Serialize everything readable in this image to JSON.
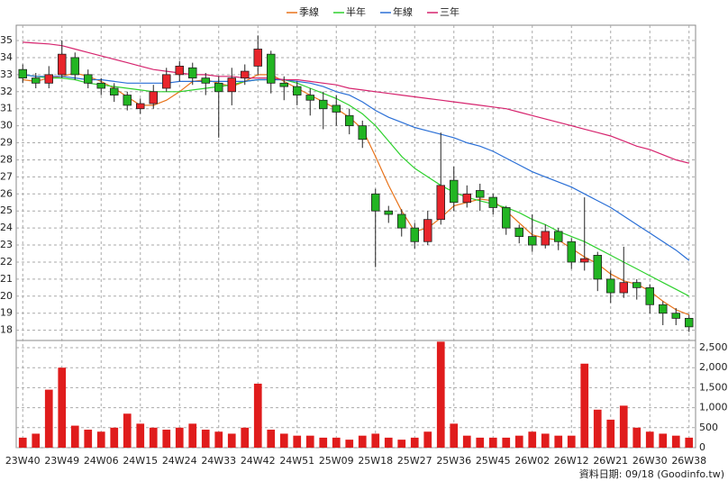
{
  "chart_data": {
    "type": "candlestick",
    "legend": "top",
    "grid": true,
    "categories": [
      "23W40",
      null,
      null,
      "23W49",
      null,
      null,
      "24W06",
      null,
      null,
      "24W15",
      null,
      null,
      "24W24",
      null,
      null,
      "24W33",
      null,
      null,
      "24W42",
      null,
      null,
      "24W51",
      null,
      null,
      "25W09",
      null,
      null,
      "25W18",
      null,
      null,
      "25W27",
      null,
      null,
      "25W36",
      null,
      null,
      "25W45",
      null,
      null,
      "26W02",
      null,
      null,
      "26W12",
      null,
      null,
      "26W21",
      null,
      null,
      "26W30",
      null,
      null,
      "26W38"
    ],
    "open": [
      33.3,
      32.8,
      32.5,
      33.0,
      34.0,
      33.0,
      32.5,
      32.2,
      31.8,
      31.0,
      31.3,
      32.2,
      33.0,
      33.4,
      32.8,
      32.5,
      32.0,
      32.8,
      33.5,
      34.2,
      32.5,
      32.3,
      31.8,
      31.5,
      31.2,
      30.6,
      30.0,
      26.0,
      25.0,
      24.8,
      24.0,
      23.2,
      24.5,
      26.8,
      25.5,
      26.2,
      25.8,
      25.2,
      24.0,
      23.5,
      23.0,
      23.8,
      23.2,
      22.0,
      22.4,
      21.0,
      20.2,
      20.8,
      20.5,
      19.5,
      19.0,
      18.7
    ],
    "high": [
      33.6,
      33.1,
      33.5,
      35.0,
      34.3,
      33.3,
      32.8,
      32.5,
      32.0,
      31.6,
      32.4,
      33.4,
      33.8,
      33.7,
      33.1,
      32.9,
      33.4,
      33.6,
      35.3,
      34.4,
      32.9,
      32.6,
      32.2,
      32.0,
      31.8,
      31.0,
      30.3,
      26.3,
      25.3,
      25.1,
      24.3,
      25.0,
      29.6,
      27.6,
      26.5,
      26.6,
      26.0,
      25.3,
      24.2,
      24.8,
      24.2,
      24.0,
      23.4,
      25.8,
      22.6,
      21.5,
      22.9,
      21.0,
      20.7,
      19.7,
      19.3,
      18.9
    ],
    "low": [
      32.5,
      32.2,
      32.2,
      32.8,
      32.7,
      32.2,
      31.8,
      31.4,
      30.9,
      30.7,
      31.0,
      32.0,
      32.6,
      32.4,
      31.8,
      29.3,
      31.2,
      32.4,
      33.0,
      31.9,
      31.5,
      31.2,
      30.6,
      29.8,
      30.0,
      29.5,
      28.7,
      21.7,
      24.3,
      23.5,
      22.8,
      23.0,
      24.2,
      25.0,
      25.2,
      25.0,
      24.8,
      23.6,
      23.1,
      22.6,
      22.8,
      22.7,
      21.6,
      21.5,
      20.3,
      19.6,
      19.9,
      19.8,
      19.0,
      18.3,
      18.3,
      17.9
    ],
    "close": [
      32.8,
      32.5,
      33.0,
      34.2,
      33.0,
      32.5,
      32.2,
      31.8,
      31.2,
      31.3,
      32.0,
      33.0,
      33.5,
      32.8,
      32.5,
      32.0,
      32.8,
      33.2,
      34.5,
      32.5,
      32.3,
      31.8,
      31.5,
      31.0,
      30.8,
      30.0,
      29.2,
      25.0,
      24.8,
      24.0,
      23.2,
      24.5,
      26.5,
      25.5,
      26.0,
      25.8,
      25.2,
      24.0,
      23.5,
      23.0,
      23.8,
      23.2,
      22.0,
      22.2,
      21.0,
      20.2,
      20.8,
      20.5,
      19.5,
      19.0,
      18.7,
      18.2
    ],
    "up_color": "#e8242b",
    "down_color": "#22b522",
    "series": [
      {
        "name": "季線",
        "color": "#e8731a",
        "values": [
          32.7,
          32.6,
          32.8,
          32.9,
          33.1,
          32.9,
          32.6,
          32.2,
          31.7,
          31.2,
          31.2,
          31.5,
          32.0,
          32.6,
          32.7,
          32.5,
          32.3,
          32.6,
          33.0,
          33.0,
          32.6,
          32.2,
          31.8,
          31.4,
          31.0,
          30.5,
          29.8,
          28.2,
          26.5,
          25.0,
          23.8,
          24.0,
          24.6,
          25.3,
          25.5,
          25.7,
          25.6,
          25.0,
          24.3,
          23.6,
          23.4,
          23.3,
          22.8,
          22.3,
          21.9,
          21.3,
          20.9,
          20.7,
          20.3,
          19.7,
          19.2,
          18.9
        ]
      },
      {
        "name": "半年",
        "color": "#2ed12e",
        "values": [
          33.0,
          32.9,
          32.8,
          32.8,
          32.7,
          32.5,
          32.4,
          32.3,
          32.2,
          32.1,
          32.0,
          32.0,
          32.0,
          32.1,
          32.2,
          32.3,
          32.4,
          32.6,
          32.7,
          32.7,
          32.7,
          32.5,
          32.2,
          31.9,
          31.6,
          31.2,
          30.7,
          30.0,
          29.1,
          28.2,
          27.5,
          27.0,
          26.5,
          26.1,
          25.8,
          25.6,
          25.4,
          25.2,
          24.9,
          24.5,
          24.2,
          23.8,
          23.5,
          23.2,
          22.8,
          22.4,
          22.0,
          21.6,
          21.2,
          20.8,
          20.4,
          20.0
        ]
      },
      {
        "name": "年線",
        "color": "#2a6fd6",
        "values": [
          33.0,
          32.9,
          32.9,
          32.9,
          32.8,
          32.7,
          32.7,
          32.6,
          32.5,
          32.5,
          32.5,
          32.5,
          32.6,
          32.6,
          32.6,
          32.6,
          32.6,
          32.6,
          32.7,
          32.7,
          32.7,
          32.6,
          32.5,
          32.3,
          32.0,
          31.8,
          31.4,
          30.9,
          30.5,
          30.2,
          29.9,
          29.7,
          29.5,
          29.3,
          29.0,
          28.8,
          28.5,
          28.1,
          27.7,
          27.3,
          27.0,
          26.7,
          26.4,
          26.0,
          25.6,
          25.2,
          24.7,
          24.2,
          23.7,
          23.2,
          22.7,
          22.1
        ]
      },
      {
        "name": "三年",
        "color": "#d6246e",
        "values": [
          34.9,
          34.85,
          34.8,
          34.7,
          34.5,
          34.3,
          34.1,
          33.9,
          33.7,
          33.5,
          33.3,
          33.2,
          33.1,
          33.0,
          33.0,
          32.9,
          32.9,
          32.8,
          32.8,
          32.8,
          32.7,
          32.7,
          32.6,
          32.5,
          32.4,
          32.2,
          32.1,
          32.0,
          31.9,
          31.8,
          31.7,
          31.6,
          31.5,
          31.4,
          31.3,
          31.2,
          31.1,
          31.0,
          30.8,
          30.6,
          30.4,
          30.2,
          30.0,
          29.8,
          29.6,
          29.4,
          29.1,
          28.8,
          28.6,
          28.3,
          28.0,
          27.8
        ]
      }
    ],
    "ylim": [
      17.4,
      35.9
    ],
    "yticks": [
      18,
      19,
      20,
      21,
      22,
      23,
      24,
      25,
      26,
      27,
      28,
      29,
      30,
      31,
      32,
      33,
      34,
      35
    ],
    "volume": {
      "color": "#e01c1c",
      "axis": "y2",
      "values": [
        250,
        350,
        1450,
        2000,
        550,
        450,
        400,
        500,
        850,
        600,
        500,
        450,
        500,
        600,
        450,
        400,
        350,
        500,
        1600,
        450,
        350,
        300,
        300,
        250,
        250,
        200,
        300,
        350,
        250,
        200,
        250,
        400,
        2650,
        600,
        300,
        250,
        250,
        250,
        300,
        400,
        350,
        300,
        300,
        2100,
        950,
        700,
        1050,
        500,
        400,
        350,
        300,
        250
      ]
    },
    "y2lim": [
      0,
      2680
    ],
    "y2ticks": [
      0,
      {
        "value": 500,
        "label": "500"
      },
      {
        "value": 1000,
        "label": "1,000"
      },
      {
        "value": 1500,
        "label": "1,500"
      },
      {
        "value": 2000,
        "label": "2,000"
      },
      {
        "value": 2500,
        "label": "2,500"
      }
    ],
    "source_note": "資料日期: 09/18  (Goodinfo.tw)"
  }
}
